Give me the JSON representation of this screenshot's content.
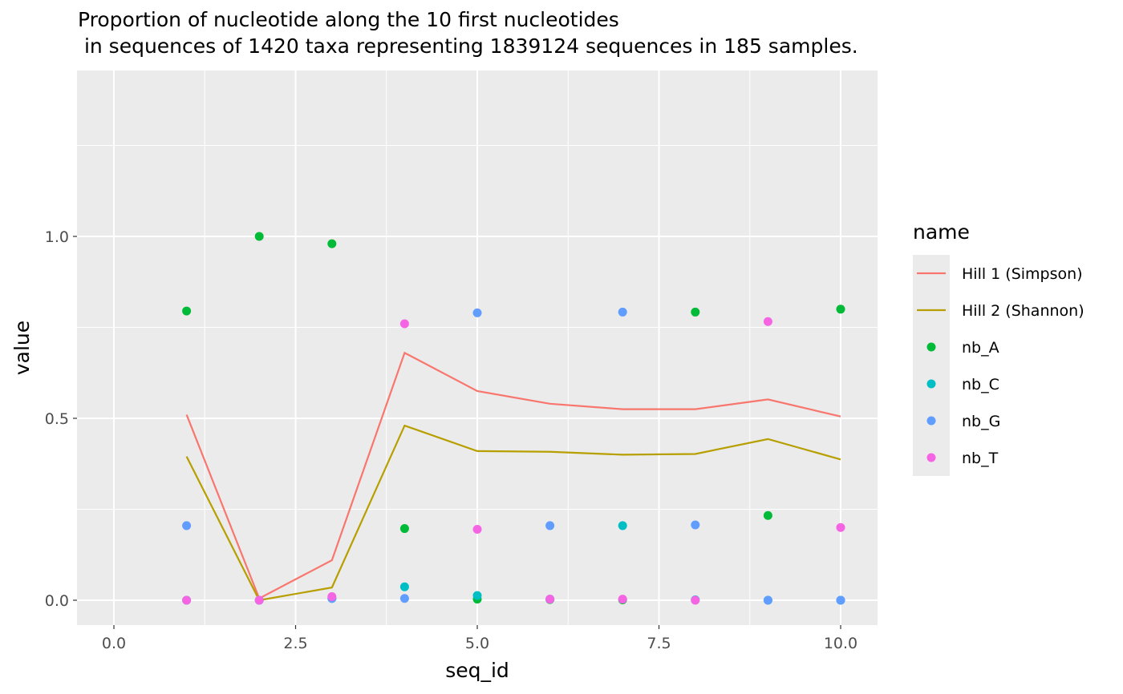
{
  "chart_data": {
    "type": "line",
    "title_line1": "Proportion of nucleotide along the 10 first nucleotides",
    "title_line2": " in sequences of 1420 taxa representing 1839124 sequences in 185 samples.",
    "xlabel": "seq_id",
    "ylabel": "value",
    "xlim": [
      -0.1,
      10.1
    ],
    "ylim": [
      -0.07,
      1.45
    ],
    "x_ticks": [
      0.0,
      2.5,
      5.0,
      7.5,
      10.0
    ],
    "x_tick_labels": [
      "0.0",
      "2.5",
      "5.0",
      "7.5",
      "10.0"
    ],
    "y_ticks": [
      0.0,
      0.5,
      1.0
    ],
    "y_tick_labels": [
      "0.0",
      "0.5",
      "1.0"
    ],
    "grid": true,
    "background": "#ebebeb",
    "legend": {
      "title": "name",
      "position": "right"
    },
    "x": [
      1,
      2,
      3,
      4,
      5,
      6,
      7,
      8,
      9,
      10
    ],
    "line_series": [
      {
        "name": "Hill 1 (Simpson)",
        "color": "#f8766d",
        "values": [
          0.51,
          0.005,
          0.11,
          0.68,
          0.575,
          0.54,
          0.525,
          0.525,
          0.552,
          0.505
        ]
      },
      {
        "name": "Hill 2 (Shannon)",
        "color": "#b79f00",
        "values": [
          0.395,
          0.0,
          0.035,
          0.48,
          0.41,
          0.408,
          0.4,
          0.402,
          0.443,
          0.387
        ]
      }
    ],
    "point_series": [
      {
        "name": "nb_A",
        "color": "#00ba38",
        "values": [
          0.795,
          1.0,
          0.98,
          0.197,
          0.003,
          0.002,
          0.001,
          0.792,
          0.233,
          0.8
        ]
      },
      {
        "name": "nb_C",
        "color": "#00bfc4",
        "values": [
          0.0,
          0.0,
          0.005,
          0.037,
          0.013,
          0.003,
          0.205,
          0.001,
          0.0,
          0.0
        ]
      },
      {
        "name": "nb_G",
        "color": "#619cff",
        "values": [
          0.205,
          0.0,
          0.005,
          0.005,
          0.79,
          0.205,
          0.792,
          0.207,
          0.0,
          0.0
        ]
      },
      {
        "name": "nb_T",
        "color": "#f564e3",
        "values": [
          0.0,
          0.0,
          0.01,
          0.76,
          0.195,
          0.003,
          0.003,
          0.0,
          0.766,
          0.2
        ]
      }
    ]
  }
}
